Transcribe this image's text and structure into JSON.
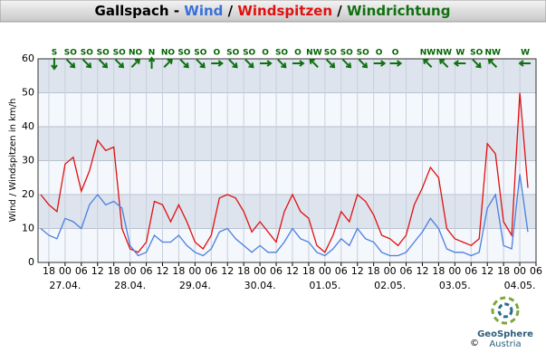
{
  "chart_data": {
    "type": "line",
    "title_parts": [
      {
        "text": "Gallspach -",
        "color": "#000000"
      },
      {
        "text": "Wind",
        "color": "#3a6fd8"
      },
      {
        "text": "/",
        "color": "#000000"
      },
      {
        "text": "Windspitzen",
        "color": "#e01010"
      },
      {
        "text": "/",
        "color": "#000000"
      },
      {
        "text": "Windrichtung",
        "color": "#107010"
      }
    ],
    "y_label": "Wind / Windspitzen in km/h",
    "xlim": [
      -10,
      174
    ],
    "xticks": [
      {
        "value": -6,
        "label": "18"
      },
      {
        "value": 0,
        "label": "00"
      },
      {
        "value": 6,
        "label": "06"
      },
      {
        "value": 12,
        "label": "12"
      },
      {
        "value": 18,
        "label": "18"
      },
      {
        "value": 24,
        "label": "00"
      },
      {
        "value": 30,
        "label": "06"
      },
      {
        "value": 36,
        "label": "12"
      },
      {
        "value": 42,
        "label": "18"
      },
      {
        "value": 48,
        "label": "00"
      },
      {
        "value": 54,
        "label": "06"
      },
      {
        "value": 60,
        "label": "12"
      },
      {
        "value": 66,
        "label": "18"
      },
      {
        "value": 72,
        "label": "00"
      },
      {
        "value": 78,
        "label": "06"
      },
      {
        "value": 84,
        "label": "12"
      },
      {
        "value": 90,
        "label": "18"
      },
      {
        "value": 96,
        "label": "00"
      },
      {
        "value": 102,
        "label": "06"
      },
      {
        "value": 108,
        "label": "12"
      },
      {
        "value": 114,
        "label": "18"
      },
      {
        "value": 120,
        "label": "00"
      },
      {
        "value": 126,
        "label": "06"
      },
      {
        "value": 132,
        "label": "12"
      },
      {
        "value": 138,
        "label": "18"
      },
      {
        "value": 144,
        "label": "00"
      },
      {
        "value": 150,
        "label": "06"
      },
      {
        "value": 156,
        "label": "12"
      },
      {
        "value": 162,
        "label": "18"
      },
      {
        "value": 168,
        "label": "00"
      },
      {
        "value": 174,
        "label": "06"
      }
    ],
    "date_labels": [
      {
        "value": 0,
        "label": "27.04."
      },
      {
        "value": 24,
        "label": "28.04."
      },
      {
        "value": 48,
        "label": "29.04."
      },
      {
        "value": 72,
        "label": "30.04."
      },
      {
        "value": 96,
        "label": "01.05."
      },
      {
        "value": 120,
        "label": "02.05."
      },
      {
        "value": 144,
        "label": "03.05."
      },
      {
        "value": 168,
        "label": "04.05."
      }
    ],
    "ylim": [
      0,
      60
    ],
    "yticks": [
      0,
      10,
      20,
      30,
      40,
      50,
      60
    ],
    "x": [
      -9,
      -6,
      -3,
      0,
      3,
      6,
      9,
      12,
      15,
      18,
      21,
      24,
      27,
      30,
      33,
      36,
      39,
      42,
      45,
      48,
      51,
      54,
      57,
      60,
      63,
      66,
      69,
      72,
      75,
      78,
      81,
      84,
      87,
      90,
      93,
      96,
      99,
      102,
      105,
      108,
      111,
      114,
      117,
      120,
      123,
      126,
      129,
      132,
      135,
      138,
      141,
      144,
      147,
      150,
      153,
      156,
      159,
      162,
      165,
      168,
      171
    ],
    "series": [
      {
        "name": "Windspitzen",
        "color": "#e01010",
        "values": [
          20,
          17,
          15,
          29,
          31,
          21,
          27,
          36,
          33,
          34,
          10,
          4,
          3,
          6,
          18,
          17,
          12,
          17,
          12,
          6,
          4,
          8,
          19,
          20,
          19,
          15,
          9,
          12,
          9,
          6,
          15,
          20,
          15,
          13,
          5,
          3,
          8,
          15,
          12,
          20,
          18,
          14,
          8,
          7,
          5,
          8,
          17,
          22,
          28,
          25,
          10,
          7,
          6,
          5,
          7,
          35,
          32,
          12,
          8,
          50,
          22
        ]
      },
      {
        "name": "Wind",
        "color": "#4a7fe0",
        "values": [
          10,
          8,
          7,
          13,
          12,
          10,
          17,
          20,
          17,
          18,
          16,
          5,
          2,
          3,
          8,
          6,
          6,
          8,
          5,
          3,
          2,
          4,
          9,
          10,
          7,
          5,
          3,
          5,
          3,
          3,
          6,
          10,
          7,
          6,
          3,
          2,
          4,
          7,
          5,
          10,
          7,
          6,
          3,
          2,
          2,
          3,
          6,
          9,
          13,
          10,
          4,
          3,
          3,
          2,
          3,
          16,
          20,
          5,
          4,
          26,
          9
        ]
      }
    ],
    "directions": {
      "x": [
        -4,
        2,
        8,
        14,
        20,
        26,
        32,
        38,
        44,
        50,
        56,
        62,
        68,
        74,
        80,
        86,
        92,
        98,
        104,
        110,
        116,
        122,
        134,
        140,
        146,
        152,
        158,
        170
      ],
      "labels": [
        "S",
        "SO",
        "SO",
        "SO",
        "SO",
        "NO",
        "N",
        "NO",
        "SO",
        "SO",
        "O",
        "SO",
        "SO",
        "O",
        "SO",
        "O",
        "NW",
        "SO",
        "SO",
        "SO",
        "O",
        "O",
        "NW",
        "NW",
        "W",
        "SO",
        "NW",
        "W"
      ]
    },
    "logo": {
      "name": "GeoSphere",
      "sub": "Austria",
      "copyright": "©"
    }
  }
}
